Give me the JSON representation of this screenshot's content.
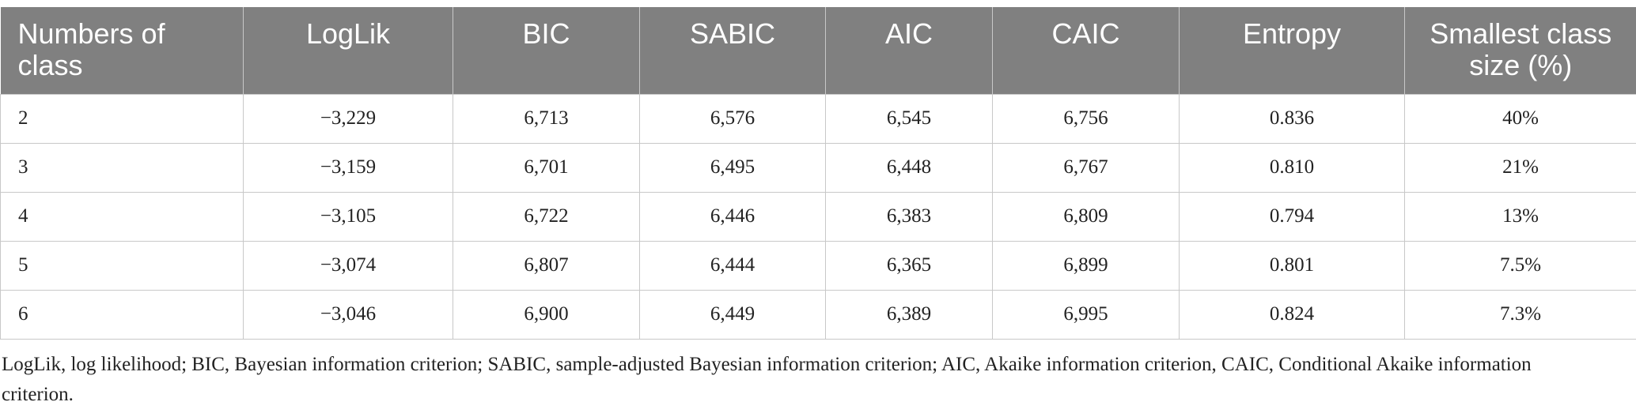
{
  "table": {
    "headers": [
      "Numbers of class",
      "LogLik",
      "BIC",
      "SABIC",
      "AIC",
      "CAIC",
      "Entropy",
      "Smallest class size (%)"
    ],
    "rows": [
      [
        "2",
        "−3,229",
        "6,713",
        "6,576",
        "6,545",
        "6,756",
        "0.836",
        "40%"
      ],
      [
        "3",
        "−3,159",
        "6,701",
        "6,495",
        "6,448",
        "6,767",
        "0.810",
        "21%"
      ],
      [
        "4",
        "−3,105",
        "6,722",
        "6,446",
        "6,383",
        "6,809",
        "0.794",
        "13%"
      ],
      [
        "5",
        "−3,074",
        "6,807",
        "6,444",
        "6,365",
        "6,899",
        "0.801",
        "7.5%"
      ],
      [
        "6",
        "−3,046",
        "6,900",
        "6,449",
        "6,389",
        "6,995",
        "0.824",
        "7.3%"
      ]
    ]
  },
  "footnote": "LogLik, log likelihood; BIC, Bayesian information criterion; SABIC, sample-adjusted Bayesian information criterion; AIC, Akaike information criterion, CAIC, Conditional Akaike information criterion.",
  "colors": {
    "header_background": "#808080",
    "header_text": "#ffffff",
    "grid_line": "#c8c8c8",
    "body_text": "#222222"
  }
}
